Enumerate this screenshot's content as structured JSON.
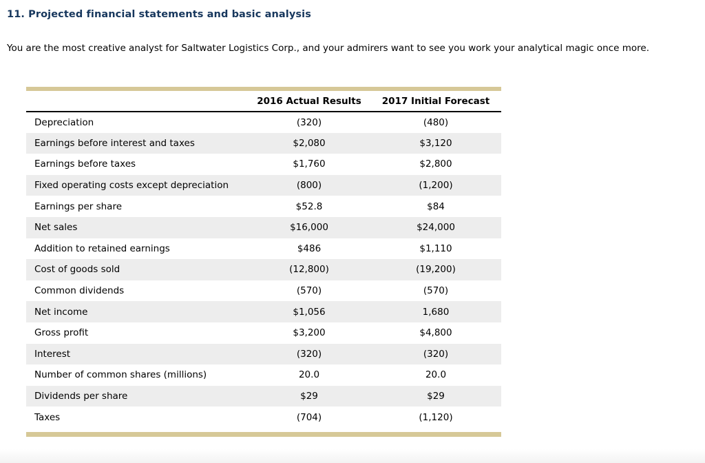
{
  "page": {
    "heading": "11. Projected financial statements and basic analysis",
    "intro": "You are the most creative analyst for Saltwater Logistics Corp., and your admirers want to see you work your analytical magic once more."
  },
  "table": {
    "column_headers": {
      "label": "",
      "col_2016": "2016 Actual Results",
      "col_2017": "2017 Initial Forecast"
    },
    "rows": [
      {
        "label": "Depreciation",
        "actual_2016": "(320)",
        "forecast_2017": "(480)"
      },
      {
        "label": "Earnings before interest and taxes",
        "actual_2016": "$2,080",
        "forecast_2017": "$3,120"
      },
      {
        "label": "Earnings before taxes",
        "actual_2016": "$1,760",
        "forecast_2017": "$2,800"
      },
      {
        "label": "Fixed operating costs except depreciation",
        "actual_2016": "(800)",
        "forecast_2017": "(1,200)"
      },
      {
        "label": "Earnings per share",
        "actual_2016": "$52.8",
        "forecast_2017": "$84"
      },
      {
        "label": "Net sales",
        "actual_2016": "$16,000",
        "forecast_2017": "$24,000"
      },
      {
        "label": "Addition to retained earnings",
        "actual_2016": "$486",
        "forecast_2017": "$1,110"
      },
      {
        "label": "Cost of goods sold",
        "actual_2016": "(12,800)",
        "forecast_2017": "(19,200)"
      },
      {
        "label": "Common dividends",
        "actual_2016": "(570)",
        "forecast_2017": "(570)"
      },
      {
        "label": "Net income",
        "actual_2016": "$1,056",
        "forecast_2017": "1,680"
      },
      {
        "label": "Gross profit",
        "actual_2016": "$3,200",
        "forecast_2017": "$4,800"
      },
      {
        "label": "Interest",
        "actual_2016": "(320)",
        "forecast_2017": "(320)"
      },
      {
        "label": "Number of common shares (millions)",
        "actual_2016": "20.0",
        "forecast_2017": "20.0"
      },
      {
        "label": "Dividends per share",
        "actual_2016": "$29",
        "forecast_2017": "$29"
      },
      {
        "label": "Taxes",
        "actual_2016": "(704)",
        "forecast_2017": "(1,120)"
      }
    ]
  },
  "colors": {
    "heading_text": "#17375d",
    "accent_bar": "#d6c897",
    "row_stripe": "#ededed",
    "header_rule": "#000000"
  }
}
